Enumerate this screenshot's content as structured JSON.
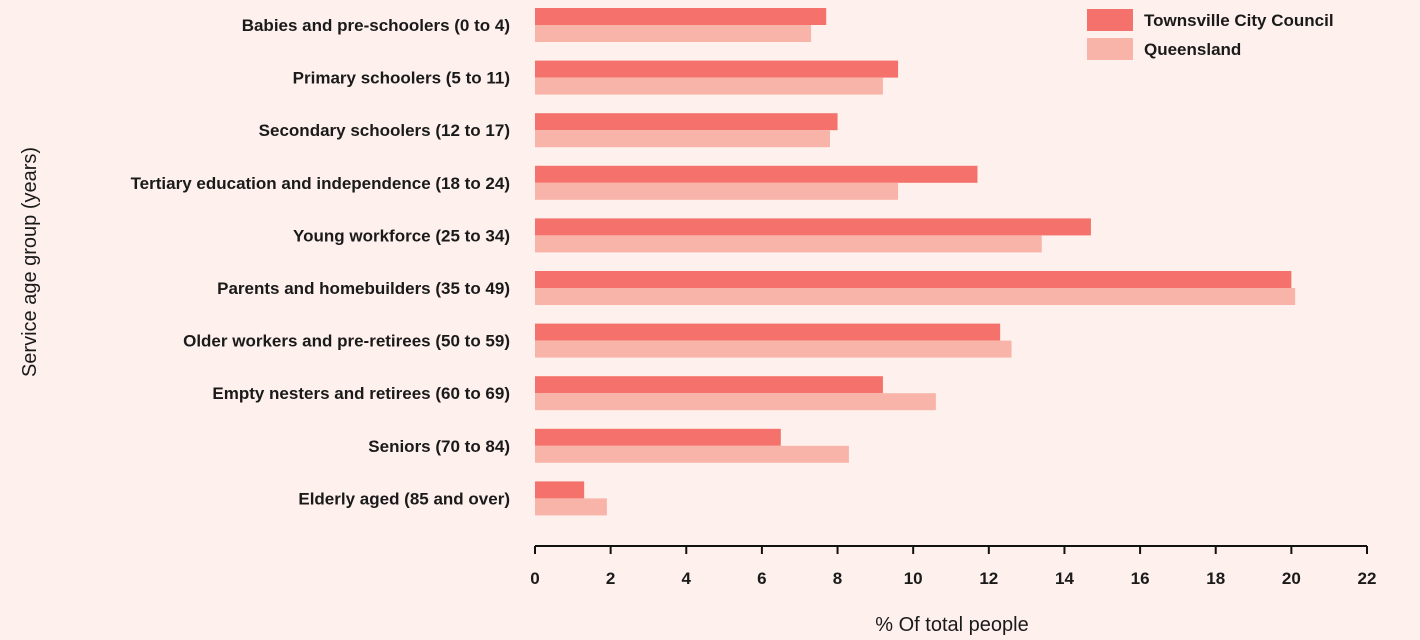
{
  "chart_data": {
    "type": "bar",
    "orientation": "horizontal",
    "categories": [
      "Babies and pre-schoolers (0 to 4)",
      "Primary schoolers (5 to 11)",
      "Secondary schoolers (12 to 17)",
      "Tertiary education and independence (18 to 24)",
      "Young workforce (25 to 34)",
      "Parents and homebuilders (35 to 49)",
      "Older workers and pre-retirees (50 to 59)",
      "Empty nesters and retirees (60 to 69)",
      "Seniors (70 to 84)",
      "Elderly aged (85 and over)"
    ],
    "series": [
      {
        "name": "Townsville City Council",
        "color": "#f4726b",
        "values": [
          7.7,
          9.6,
          8.0,
          11.7,
          14.7,
          20.0,
          12.3,
          9.2,
          6.5,
          1.3
        ]
      },
      {
        "name": "Queensland",
        "color": "#f8b4a9",
        "values": [
          7.3,
          9.2,
          7.8,
          9.6,
          13.4,
          20.1,
          12.6,
          10.6,
          8.3,
          1.9
        ]
      }
    ],
    "xlabel": "% Of total people",
    "ylabel": "Service age group (years)",
    "xlim": [
      0,
      22
    ],
    "xticks": [
      0,
      2,
      4,
      6,
      8,
      10,
      12,
      14,
      16,
      18,
      20,
      22
    ],
    "grid": false,
    "legend_position": "top-right"
  }
}
